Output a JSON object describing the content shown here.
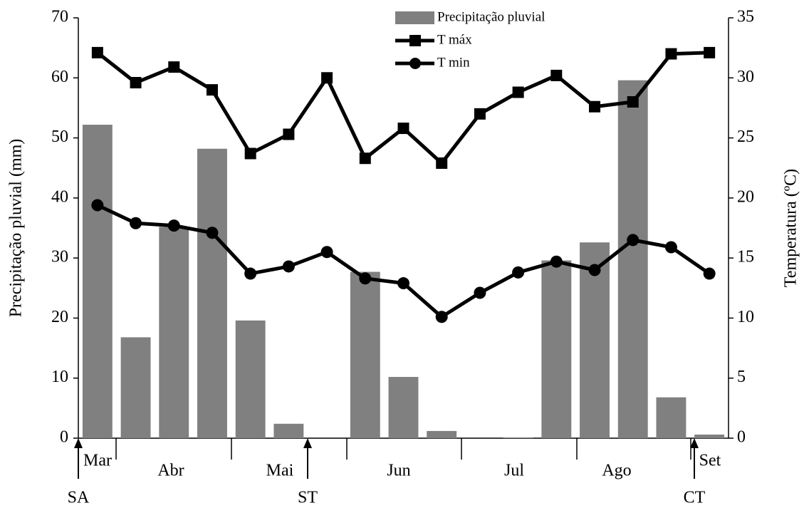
{
  "chart_data": {
    "type": "bar-line",
    "y_label": "Precipitação pluvial (mm)",
    "y2_label": "Temperatura (ºC)",
    "categories": [
      null,
      null,
      null,
      null,
      null,
      null,
      null,
      null,
      null,
      null,
      null,
      null,
      null,
      null,
      null,
      null,
      null
    ],
    "months": [
      "Mar",
      "Abr",
      "Mai",
      "Jun",
      "Jul",
      "Ago",
      "Set"
    ],
    "annotations": [
      "SA",
      "ST",
      "CT"
    ],
    "series": [
      {
        "name": "Precipitação pluvial",
        "color": "#808080",
        "kind": "bar",
        "values": [
          52.2,
          16.8,
          35.2,
          48.2,
          19.6,
          2.4,
          0,
          27.7,
          10.2,
          1.2,
          0,
          0.1,
          29.6,
          32.6,
          59.6,
          6.8,
          0.6
        ]
      },
      {
        "name": "T máx",
        "color": "#000000",
        "kind": "line",
        "marker": "square",
        "axis": "y2",
        "values": [
          32.1,
          29.6,
          30.9,
          29.0,
          23.7,
          25.3,
          30.0,
          23.3,
          25.8,
          22.9,
          27.0,
          28.8,
          30.2,
          27.6,
          28.0,
          32.0,
          32.1
        ]
      },
      {
        "name": "T min",
        "color": "#000000",
        "kind": "line",
        "marker": "circle",
        "axis": "y2",
        "values": [
          19.4,
          17.9,
          17.7,
          17.1,
          13.7,
          14.3,
          15.5,
          13.3,
          12.9,
          10.1,
          12.1,
          13.8,
          14.7,
          14.0,
          16.5,
          15.9,
          13.7
        ]
      }
    ],
    "ylim": [
      0,
      70
    ],
    "yticks": [
      0,
      10,
      20,
      30,
      40,
      50,
      60,
      70
    ],
    "y2lim": [
      0,
      35
    ],
    "y2ticks": [
      0,
      5,
      10,
      15,
      20,
      25,
      30,
      35
    ],
    "grid": false
  }
}
